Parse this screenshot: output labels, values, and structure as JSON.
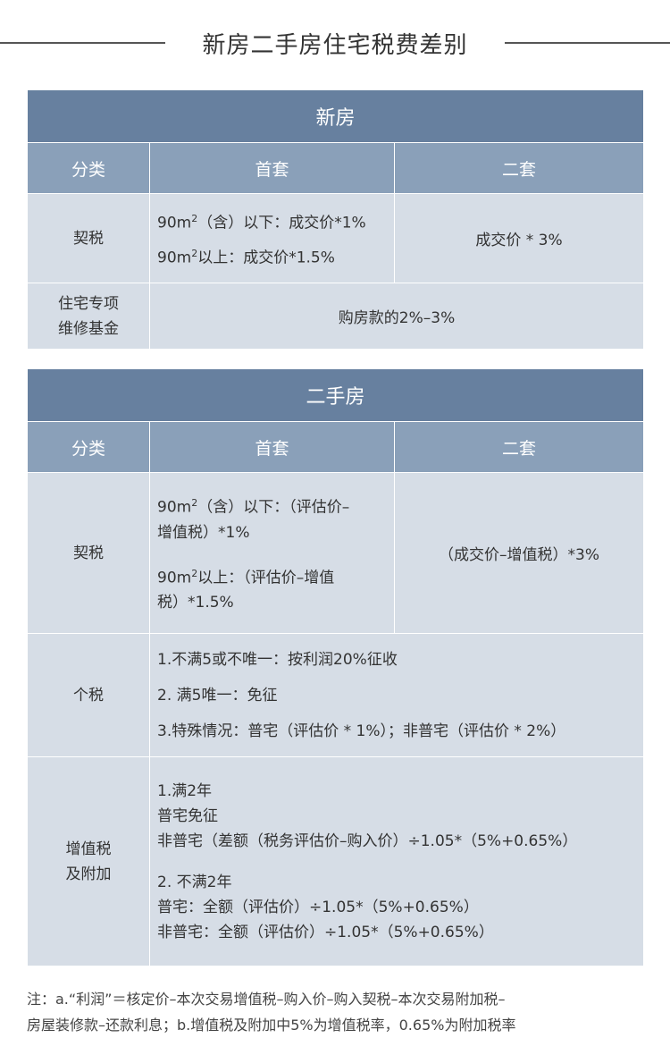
{
  "title": "新房二手房住宅税费差别",
  "new_house": {
    "header": "新房",
    "columns": [
      "分类",
      "首套",
      "二套"
    ],
    "deed_tax": {
      "label": "契税",
      "first_line1_pre": "90m",
      "first_line1_post": "（含）以下：成交价*1%",
      "first_line2_pre": "90m",
      "first_line2_post": "以上：成交价*1.5%",
      "second": "成交价 * 3%"
    },
    "maintenance": {
      "label_line1": "住宅专项",
      "label_line2": "维修基金",
      "value": "购房款的2%–3%"
    }
  },
  "second_hand": {
    "header": "二手房",
    "columns": [
      "分类",
      "首套",
      "二套"
    ],
    "deed_tax": {
      "label": "契税",
      "first_a_line1_pre": "90m",
      "first_a_line1_post": "（含）以下：（评估价–",
      "first_a_line2": "增值税）*1%",
      "first_b_line1_pre": "90m",
      "first_b_line1_post": "以上：（评估价–增值",
      "first_b_line2": "税）*1.5%",
      "second": "（成交价–增值税）*3%"
    },
    "income_tax": {
      "label": "个税",
      "lines": [
        "1.不满5或不唯一：按利润20%征收",
        "2. 满5唯一：免征",
        "3.特殊情况：普宅（评估价 * 1%）；非普宅（评估价 * 2%）"
      ]
    },
    "vat": {
      "label_line1": "增值税",
      "label_line2": "及附加",
      "group1": [
        "1.满2年",
        "普宅免征",
        "非普宅（差额（税务评估价–购入价）÷1.05*（5%+0.65%）"
      ],
      "group2": [
        "2. 不满2年",
        "普宅：全额（评估价）÷1.05*（5%+0.65%）",
        "非普宅：全额（评估价）÷1.05*（5%+0.65%）"
      ]
    }
  },
  "note": {
    "line1": "注：a.“利润”＝核定价–本次交易增值税–购入价–购入契税–本次交易附加税–",
    "line2": "房屋装修款–还款利息；b.增值税及附加中5%为增值税率，0.65%为附加税率"
  }
}
